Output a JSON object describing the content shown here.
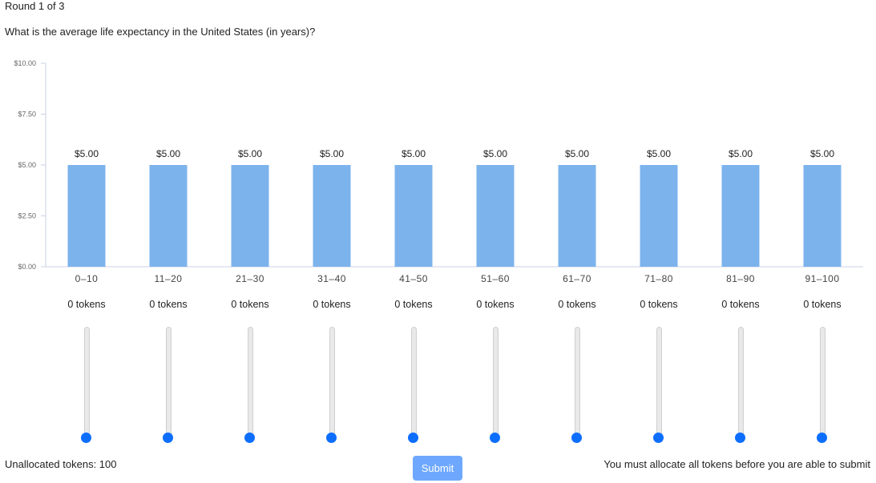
{
  "header": {
    "round": "Round 1 of 3",
    "question": "What is the average life expectancy in the United States (in years)?"
  },
  "colors": {
    "bar": "#7cb3ec",
    "axis": "#c9d2e3",
    "slider_thumb": "#0d6efd",
    "submit_bg": "#6ea8fe"
  },
  "chart_data": {
    "type": "bar",
    "title": "",
    "xlabel": "",
    "ylabel": "",
    "categories": [
      "0–10",
      "11–20",
      "21–30",
      "31–40",
      "41–50",
      "51–60",
      "61–70",
      "71–80",
      "81–90",
      "91–100"
    ],
    "values": [
      5,
      5,
      5,
      5,
      5,
      5,
      5,
      5,
      5,
      5
    ],
    "data_labels": [
      "$5.00",
      "$5.00",
      "$5.00",
      "$5.00",
      "$5.00",
      "$5.00",
      "$5.00",
      "$5.00",
      "$5.00",
      "$5.00"
    ],
    "ylim": [
      0,
      10
    ],
    "yticks": [
      0,
      2.5,
      5,
      7.5,
      10
    ],
    "ytick_labels": [
      "$0.00",
      "$2.50",
      "$5.00",
      "$7.50",
      "$10.00"
    ],
    "grid": false,
    "legend": "none"
  },
  "allocations": [
    {
      "tokens": 0,
      "label": "0 tokens"
    },
    {
      "tokens": 0,
      "label": "0 tokens"
    },
    {
      "tokens": 0,
      "label": "0 tokens"
    },
    {
      "tokens": 0,
      "label": "0 tokens"
    },
    {
      "tokens": 0,
      "label": "0 tokens"
    },
    {
      "tokens": 0,
      "label": "0 tokens"
    },
    {
      "tokens": 0,
      "label": "0 tokens"
    },
    {
      "tokens": 0,
      "label": "0 tokens"
    },
    {
      "tokens": 0,
      "label": "0 tokens"
    },
    {
      "tokens": 0,
      "label": "0 tokens"
    }
  ],
  "footer": {
    "unallocated": "Unallocated tokens: 100",
    "submit_label": "Submit",
    "note": "You must allocate all tokens before you are able to submit"
  }
}
